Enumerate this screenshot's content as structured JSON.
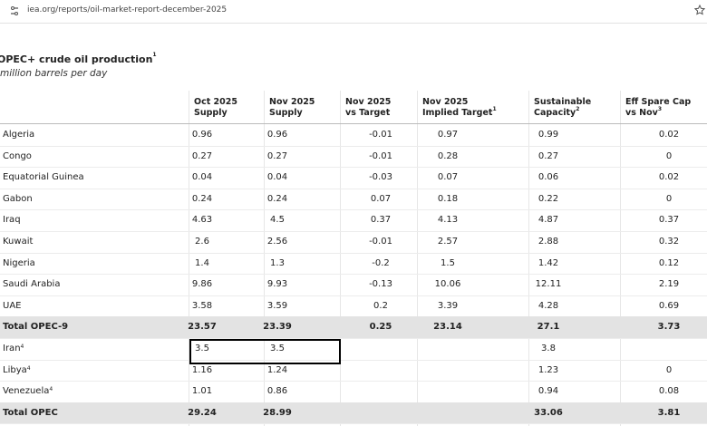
{
  "browser": {
    "url": "iea.org/reports/oil-market-report-december-2025"
  },
  "table": {
    "title": "OPEC+ crude oil production",
    "title_note": "1",
    "subtitle": "million barrels per day",
    "columns": [
      {
        "lines": [
          "Oct 2025",
          "Supply"
        ]
      },
      {
        "lines": [
          "Nov 2025",
          "Supply"
        ]
      },
      {
        "lines": [
          "Nov 2025",
          "vs Target"
        ]
      },
      {
        "lines": [
          "Nov 2025",
          "Implied Target"
        ],
        "note": "1"
      },
      {
        "lines": [
          "Sustainable",
          "Capacity"
        ],
        "note": "2"
      },
      {
        "lines": [
          "Eff Spare Cap",
          "vs Nov"
        ],
        "note": "3"
      }
    ],
    "rows": [
      {
        "label": "Algeria",
        "cells": [
          0.96,
          0.96,
          -0.01,
          0.97,
          0.99,
          0.02
        ]
      },
      {
        "label": "Congo",
        "cells": [
          0.27,
          0.27,
          -0.01,
          0.28,
          0.27,
          0
        ]
      },
      {
        "label": "Equatorial Guinea",
        "cells": [
          0.04,
          0.04,
          -0.03,
          0.07,
          0.06,
          0.02
        ]
      },
      {
        "label": "Gabon",
        "cells": [
          0.24,
          0.24,
          0.07,
          0.18,
          0.22,
          0
        ]
      },
      {
        "label": "Iraq",
        "cells": [
          4.63,
          4.5,
          0.37,
          4.13,
          4.87,
          0.37
        ]
      },
      {
        "label": "Kuwait",
        "cells": [
          2.6,
          2.56,
          -0.01,
          2.57,
          2.88,
          0.32
        ]
      },
      {
        "label": "Nigeria",
        "cells": [
          1.4,
          1.3,
          -0.2,
          1.5,
          1.42,
          0.12
        ]
      },
      {
        "label": "Saudi Arabia",
        "cells": [
          9.86,
          9.93,
          -0.13,
          10.06,
          12.11,
          2.19
        ]
      },
      {
        "label": "UAE",
        "cells": [
          3.58,
          3.59,
          0.2,
          3.39,
          4.28,
          0.69
        ]
      },
      {
        "label": "Total OPEC-9",
        "highlight": true,
        "cells": [
          23.57,
          23.39,
          0.25,
          23.14,
          27.1,
          3.73
        ]
      },
      {
        "label": "Iran",
        "note": "4",
        "cells": [
          3.5,
          3.5,
          null,
          null,
          3.8,
          null
        ]
      },
      {
        "label": "Libya",
        "note": "4",
        "cells": [
          1.16,
          1.24,
          null,
          null,
          1.23,
          0
        ]
      },
      {
        "label": "Venezuela",
        "note": "4",
        "cells": [
          1.01,
          0.86,
          null,
          null,
          0.94,
          0.08
        ]
      },
      {
        "label": "Total OPEC",
        "highlight": true,
        "cells": [
          29.24,
          28.99,
          null,
          null,
          33.06,
          3.81
        ]
      }
    ]
  }
}
